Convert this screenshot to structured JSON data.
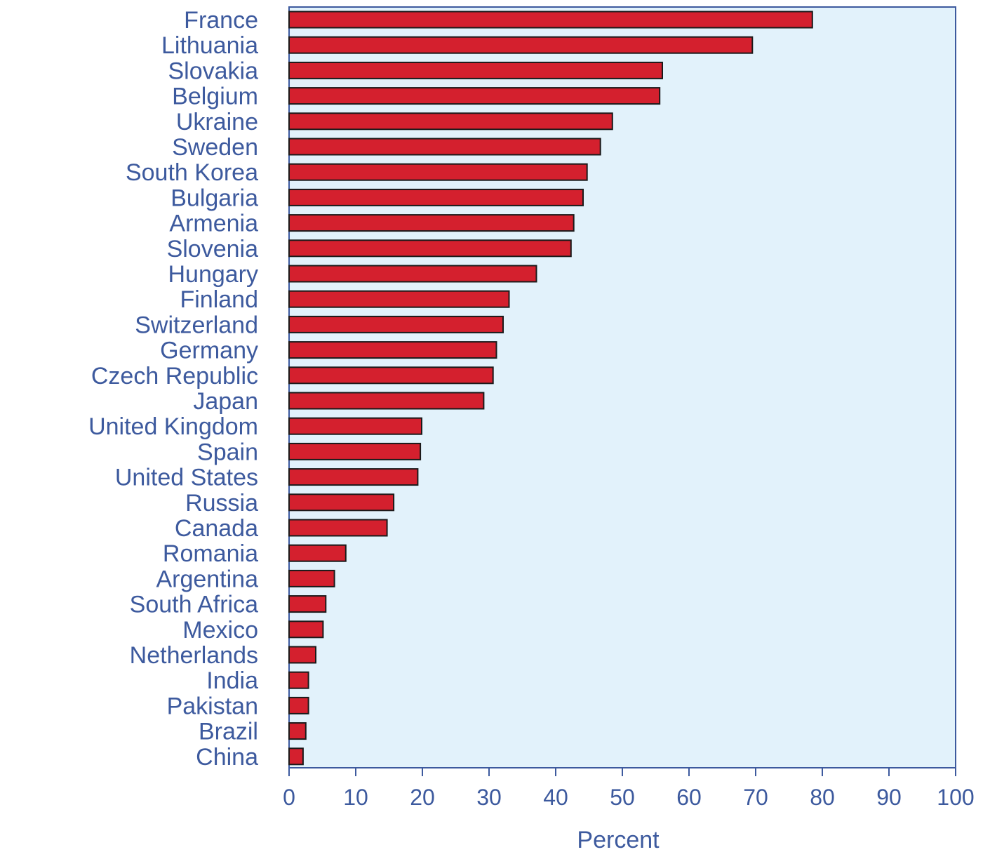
{
  "chart_data": {
    "type": "bar",
    "orientation": "horizontal",
    "categories": [
      "France",
      "Lithuania",
      "Slovakia",
      "Belgium",
      "Ukraine",
      "Sweden",
      "South Korea",
      "Bulgaria",
      "Armenia",
      "Slovenia",
      "Hungary",
      "Finland",
      "Switzerland",
      "Germany",
      "Czech Republic",
      "Japan",
      "United Kingdom",
      "Spain",
      "United States",
      "Russia",
      "Canada",
      "Romania",
      "Argentina",
      "South Africa",
      "Mexico",
      "Netherlands",
      "India",
      "Pakistan",
      "Brazil",
      "China"
    ],
    "values": [
      78.5,
      69.5,
      56,
      55.6,
      48.5,
      46.7,
      44.7,
      44.1,
      42.7,
      42.3,
      37.1,
      33,
      32.1,
      31.1,
      30.6,
      29.2,
      19.9,
      19.7,
      19.3,
      15.7,
      14.7,
      8.5,
      6.8,
      5.5,
      5.1,
      4,
      2.9,
      2.9,
      2.5,
      2.1
    ],
    "xlabel": "Percent",
    "ylabel": "",
    "xlim": [
      0,
      100
    ],
    "xticks": [
      0,
      10,
      20,
      30,
      40,
      50,
      60,
      70,
      80,
      90,
      100
    ],
    "grid": false,
    "colors": {
      "bar": "#d4202e",
      "bar_outline": "#1a1a1a",
      "plot_background": "#e2f2fb",
      "axis": "#3d5a9e",
      "text": "#3d5a9e"
    }
  }
}
